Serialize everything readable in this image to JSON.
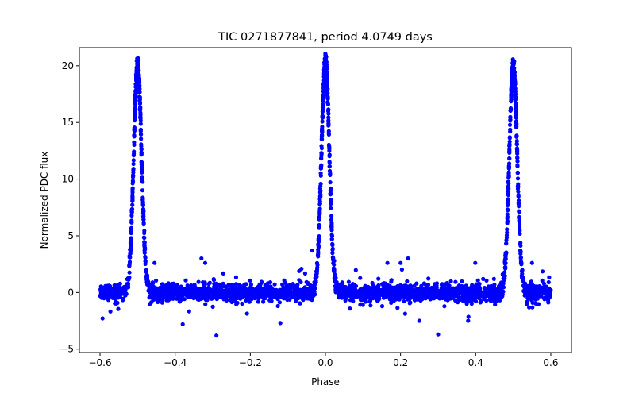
{
  "chart_data": {
    "type": "scatter",
    "title": "TIC 0271877841, period 4.0749 days",
    "xlabel": "Phase",
    "ylabel": "Normalized PDC flux",
    "xlim": [
      -0.655,
      0.655
    ],
    "ylim": [
      -5.3,
      21.6
    ],
    "xticks": [
      -0.6,
      -0.4,
      -0.2,
      0.0,
      0.2,
      0.4,
      0.6
    ],
    "xtick_labels": [
      "−0.6",
      "−0.4",
      "−0.2",
      "0.0",
      "0.2",
      "0.4",
      "0.6"
    ],
    "yticks": [
      -5,
      0,
      5,
      10,
      15,
      20
    ],
    "ytick_labels": [
      "−5",
      "0",
      "5",
      "10",
      "15",
      "20"
    ],
    "grid": false,
    "legend": "none",
    "marker_color": "#0000ff",
    "x_range_of_points": [
      -0.6,
      0.6
    ],
    "baseline": 0,
    "peaks": [
      {
        "phase": -0.5,
        "flux": 20.0
      },
      {
        "phase": 0.0,
        "flux": 20.4
      },
      {
        "phase": 0.5,
        "flux": 20.0
      }
    ],
    "outliers": [
      {
        "x": -0.33,
        "y": 3.0
      },
      {
        "x": -0.32,
        "y": 2.6
      },
      {
        "x": -0.455,
        "y": 2.6
      },
      {
        "x": -0.29,
        "y": -3.8
      },
      {
        "x": -0.035,
        "y": 3.7
      },
      {
        "x": 0.2,
        "y": 2.6
      },
      {
        "x": 0.22,
        "y": 3.0
      },
      {
        "x": 0.165,
        "y": 2.6
      },
      {
        "x": 0.3,
        "y": -3.7
      },
      {
        "x": 0.55,
        "y": 2.6
      },
      {
        "x": -0.38,
        "y": -2.8
      },
      {
        "x": -0.12,
        "y": -2.7
      },
      {
        "x": 0.25,
        "y": -2.5
      },
      {
        "x": 0.38,
        "y": -2.5
      }
    ]
  }
}
